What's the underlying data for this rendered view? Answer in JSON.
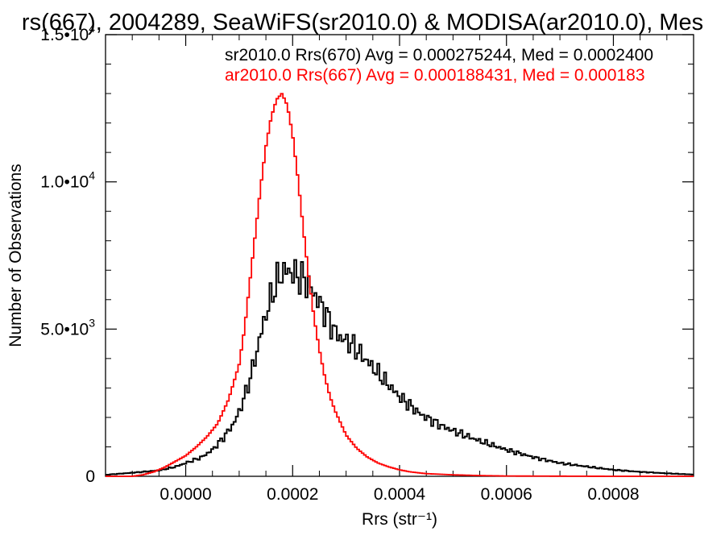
{
  "chart_data": {
    "type": "line",
    "title": "rs(667), 2004289, SeaWiFS(sr2010.0) & MODISA(ar2010.0), Mes",
    "xlabel": "Rrs (str⁻¹)",
    "ylabel": "Number of Observations",
    "xlim": [
      -0.00015,
      0.00095
    ],
    "ylim": [
      0,
      15000
    ],
    "x_ticks": [
      0.0,
      0.0002,
      0.0004,
      0.0006,
      0.0008
    ],
    "x_tick_labels": [
      "0.0000",
      "0.0002",
      "0.0004",
      "0.0006",
      "0.0008"
    ],
    "y_ticks": [
      0,
      5000,
      10000,
      15000
    ],
    "y_tick_labels": [
      {
        "mant": "0",
        "exp": ""
      },
      {
        "mant": "5.0•10",
        "exp": "3"
      },
      {
        "mant": "1.0•10",
        "exp": "4"
      },
      {
        "mant": "1.5•10",
        "exp": "4"
      }
    ],
    "grid": false,
    "legend_position": "top-right",
    "series": [
      {
        "name": "sr2010.0 Rrs(670) Avg = 0.000275244, Med = 0.0002400",
        "color": "#000000",
        "x": [
          -0.00015,
          -0.0001,
          -5e-05,
          -2e-05,
          0.0,
          3e-05,
          5e-05,
          7e-05,
          9e-05,
          0.0001,
          0.00011,
          0.00012,
          0.00013,
          0.00014,
          0.00015,
          0.00016,
          0.00017,
          0.00018,
          0.00019,
          0.0002,
          0.00021,
          0.00022,
          0.00023,
          0.00024,
          0.00025,
          0.00026,
          0.00027,
          0.00028,
          0.00029,
          0.0003,
          0.00031,
          0.00032,
          0.00033,
          0.00034,
          0.00035,
          0.00036,
          0.00037,
          0.00038,
          0.00039,
          0.0004,
          0.00042,
          0.00044,
          0.00046,
          0.00048,
          0.0005,
          0.00055,
          0.0006,
          0.00065,
          0.0007,
          0.00075,
          0.0008,
          0.00085,
          0.0009,
          0.00095
        ],
        "y": [
          50,
          120,
          200,
          320,
          450,
          650,
          900,
          1300,
          1800,
          2200,
          2700,
          3300,
          4000,
          4800,
          5500,
          6100,
          6600,
          6900,
          7000,
          6900,
          6800,
          6700,
          6500,
          6200,
          5900,
          5600,
          5200,
          4900,
          4700,
          4600,
          4500,
          4300,
          4100,
          3900,
          3700,
          3500,
          3300,
          3100,
          2900,
          2700,
          2400,
          2100,
          1900,
          1700,
          1550,
          1200,
          900,
          650,
          450,
          330,
          220,
          150,
          100,
          60
        ]
      },
      {
        "name": "ar2010.0 Rrs(667) Avg = 0.000188431, Med = 0.000183",
        "color": "#ff0000",
        "x": [
          -0.00015,
          -0.0001,
          -8e-05,
          -6e-05,
          -4e-05,
          -2e-05,
          0.0,
          2e-05,
          4e-05,
          6e-05,
          8e-05,
          0.0001,
          0.00011,
          0.00012,
          0.00013,
          0.00014,
          0.00015,
          0.00016,
          0.00017,
          0.00018,
          0.00019,
          0.0002,
          0.00021,
          0.00022,
          0.00023,
          0.00024,
          0.00025,
          0.00026,
          0.00027,
          0.00028,
          0.00029,
          0.0003,
          0.00032,
          0.00034,
          0.00036,
          0.00038,
          0.0004,
          0.00042,
          0.00045,
          0.0005,
          0.00055,
          0.0006,
          0.0007,
          0.0008,
          0.00095
        ],
        "y": [
          0,
          0,
          50,
          150,
          300,
          500,
          700,
          1000,
          1350,
          1800,
          2600,
          3800,
          5000,
          6600,
          8200,
          9800,
          11200,
          12200,
          12800,
          13000,
          12600,
          11600,
          10100,
          8400,
          6800,
          5400,
          4300,
          3400,
          2700,
          2200,
          1800,
          1400,
          950,
          650,
          450,
          320,
          220,
          150,
          90,
          50,
          25,
          10,
          5,
          0,
          0
        ]
      }
    ]
  }
}
